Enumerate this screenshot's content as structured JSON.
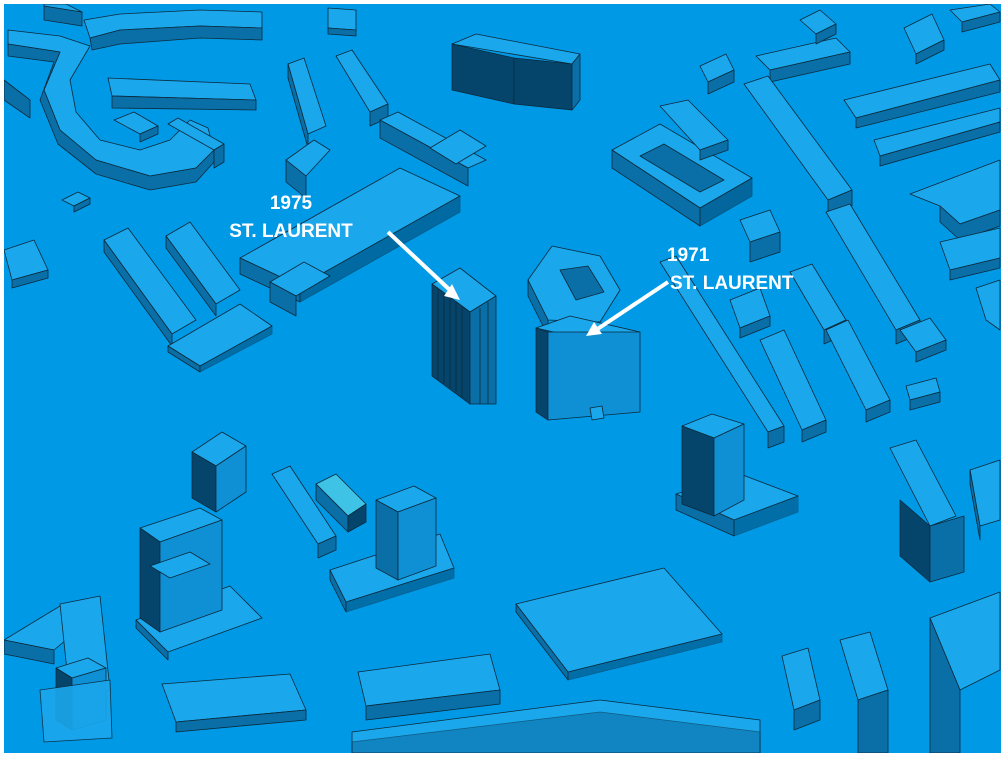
{
  "colors": {
    "ground": "#0099e6",
    "roof": "#1ba7ec",
    "wall_light": "#1090d4",
    "wall_mid": "#0a6fa6",
    "wall_dark": "#05456b",
    "outline": "#0b2a3c",
    "highlight": "#3ec3e6",
    "label_text": "#ffffff",
    "arrow": "#ffffff",
    "border": "#ffffff"
  },
  "labels": [
    {
      "number": "1975",
      "street": "ST. LAURENT"
    },
    {
      "number": "1971",
      "street": "ST. LAURENT"
    }
  ]
}
